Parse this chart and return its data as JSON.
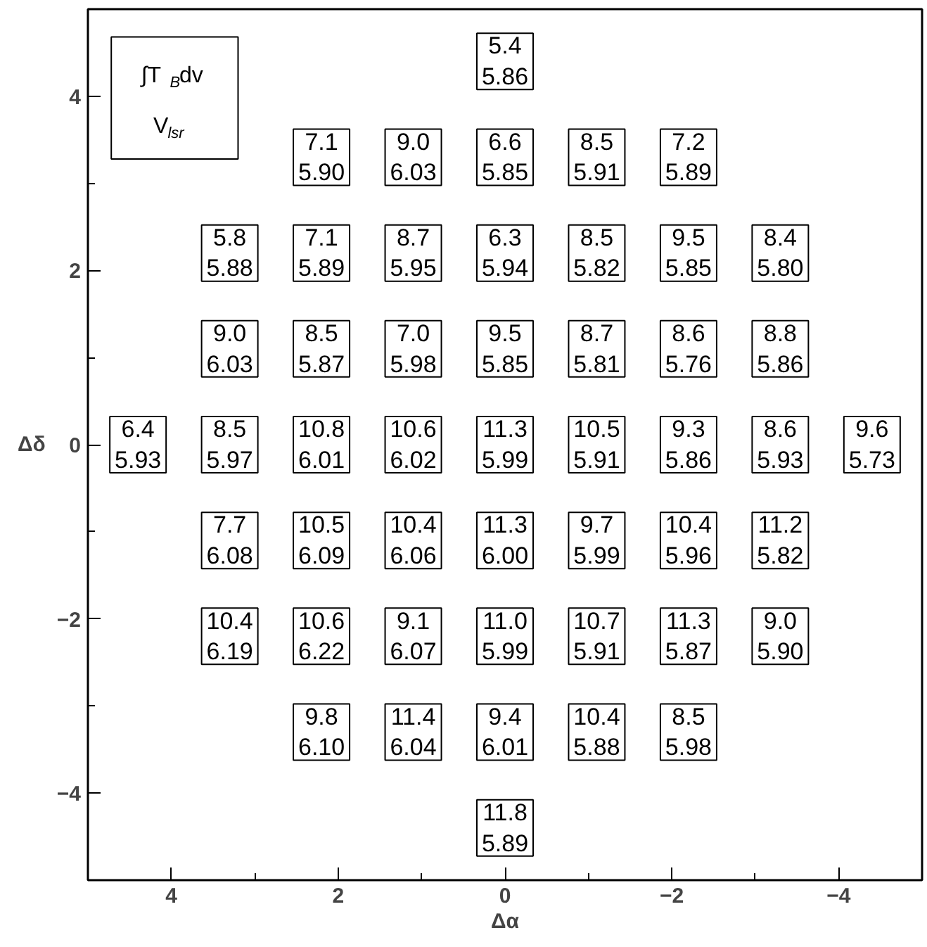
{
  "chart_data": {
    "type": "scatter",
    "xlabel": "Δα",
    "ylabel": "Δδ",
    "xlim": [
      5,
      -5
    ],
    "ylim": [
      -5,
      5
    ],
    "xticks": [
      {
        "value": 5,
        "label": null
      },
      4,
      {
        "value": 3,
        "label": null
      },
      2,
      {
        "value": 1,
        "label": null
      },
      0,
      {
        "value": -1,
        "label": null
      },
      -2,
      {
        "value": -3,
        "label": null
      },
      -4
    ],
    "yticks": [
      {
        "value": -5,
        "label": null
      },
      -4,
      {
        "value": -3,
        "label": null
      },
      -2,
      {
        "value": -1,
        "label": null
      },
      0,
      {
        "value": 1,
        "label": null
      },
      2,
      {
        "value": 3,
        "label": null
      },
      4
    ],
    "marker": "square",
    "color": "#000000",
    "annotations": [
      "∫T$_{B}$dv\nV$_{lsr}$"
    ],
    "x": [
      0,
      2.2,
      1.1,
      0,
      -1.1,
      -2.2,
      3.3,
      2.2,
      1.1,
      0,
      -1.1,
      -2.2,
      -3.3,
      3.3,
      2.2,
      1.1,
      0,
      -1.1,
      -2.2,
      -3.3,
      4.4,
      3.3,
      2.2,
      1.1,
      0,
      -1.1,
      -2.2,
      -3.3,
      -4.4,
      3.3,
      2.2,
      1.1,
      0,
      -1.1,
      -2.2,
      -3.3,
      3.3,
      2.2,
      1.1,
      0,
      -1.1,
      -2.2,
      -3.3,
      2.2,
      1.1,
      0,
      -1.1,
      -2.2,
      0
    ],
    "values": [
      4.4,
      3.3,
      3.3,
      3.3,
      3.3,
      3.3,
      2.2,
      2.2,
      2.2,
      2.2,
      2.2,
      2.2,
      2.2,
      1.1,
      1.1,
      1.1,
      1.1,
      1.1,
      1.1,
      1.1,
      0,
      0,
      0,
      0,
      0,
      0,
      0,
      0,
      0,
      -1.1,
      -1.1,
      -1.1,
      -1.1,
      -1.1,
      -1.1,
      -1.1,
      -2.2,
      -2.2,
      -2.2,
      -2.2,
      -2.2,
      -2.2,
      -2.2,
      -3.3,
      -3.3,
      -3.3,
      -3.3,
      -3.3,
      -4.4
    ],
    "value_labels": [
      "5.4\n5.86",
      "7.1\n5.90",
      "9.0\n6.03",
      "6.6\n5.85",
      "8.5\n5.91",
      "7.2\n5.89",
      "5.8\n5.88",
      "7.1\n5.89",
      "8.7\n5.95",
      "6.3\n5.94",
      "8.5\n5.82",
      "9.5\n5.85",
      "8.4\n5.80",
      "9.0\n6.03",
      "8.5\n5.87",
      "7.0\n5.98",
      "9.5\n5.85",
      "8.7\n5.81",
      "8.6\n5.76",
      "8.8\n5.86",
      "6.4\n5.93",
      "8.5\n5.97",
      "10.8\n6.01",
      "10.6\n6.02",
      "11.3\n5.99",
      "10.5\n5.91",
      "9.3\n5.86",
      "8.6\n5.93",
      "9.6\n5.73",
      "7.7\n6.08",
      "10.5\n6.09",
      "10.4\n6.06",
      "11.3\n6.00",
      "9.7\n5.99",
      "10.4\n5.96",
      "11.2\n5.82",
      "10.4\n6.19",
      "10.6\n6.22",
      "9.1\n6.07",
      "11.0\n5.99",
      "10.7\n5.91",
      "11.3\n5.87",
      "9.0\n5.90",
      "9.8\n6.10",
      "11.4\n6.04",
      "9.4\n6.01",
      "10.4\n5.88",
      "8.5\n5.98",
      "11.8\n5.89"
    ]
  }
}
